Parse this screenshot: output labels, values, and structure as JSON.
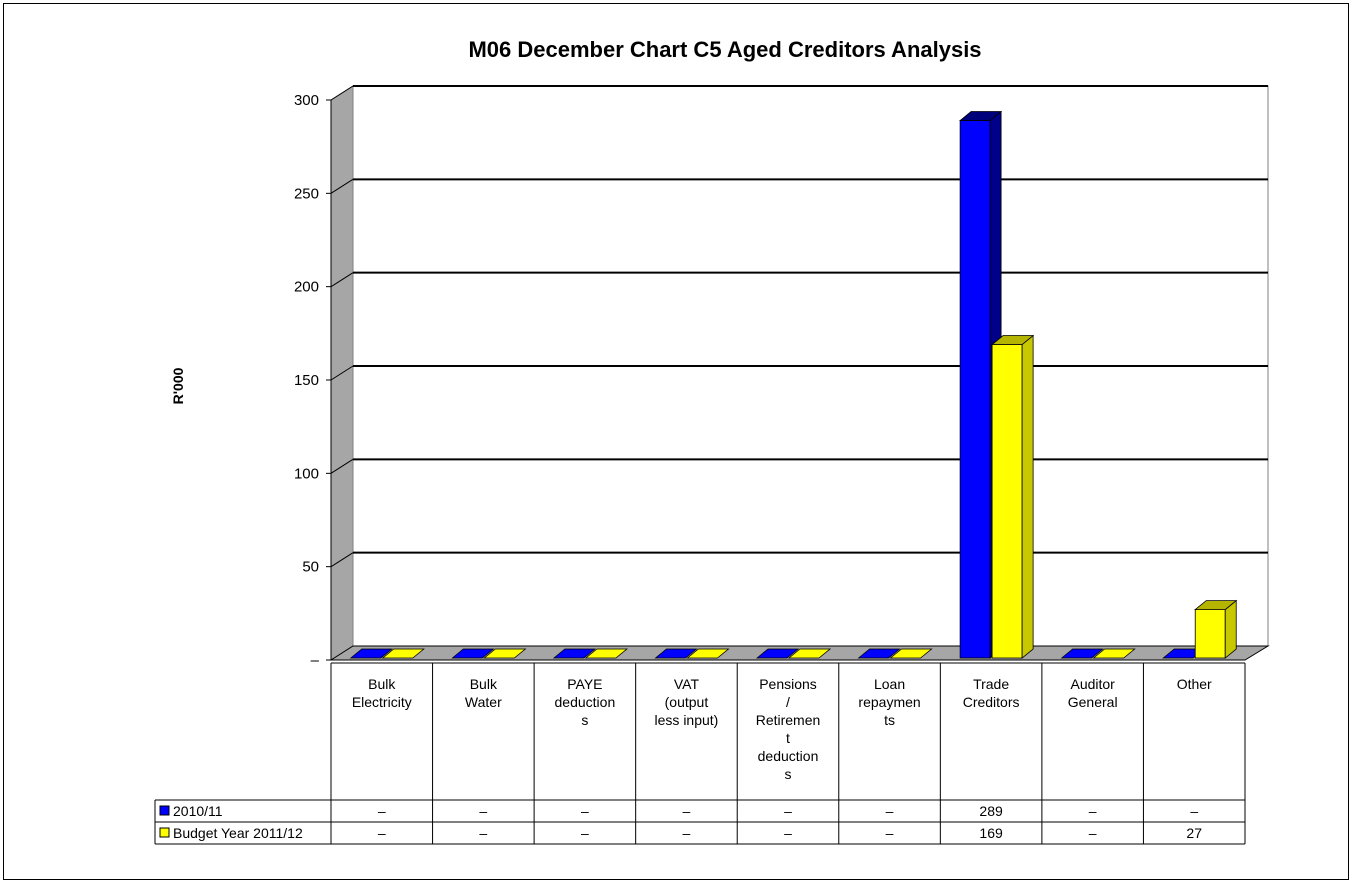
{
  "chart_data": {
    "type": "bar",
    "title": "M06 December  Chart C5 Aged Creditors Analysis",
    "ylabel": "R'000",
    "ylim": [
      0,
      300
    ],
    "yticks": [
      "–",
      "50",
      "100",
      "150",
      "200",
      "250",
      "300"
    ],
    "grid": true,
    "legend_placement": "data-table",
    "categories": [
      [
        "Bulk",
        "Electricity"
      ],
      [
        "Bulk",
        "Water"
      ],
      [
        "PAYE",
        "deduction",
        "s"
      ],
      [
        "VAT",
        "(output",
        "less input)"
      ],
      [
        "Pensions",
        "/",
        "Retiremen",
        "t",
        "deduction",
        "s"
      ],
      [
        "Loan",
        "repaymen",
        "ts"
      ],
      [
        "Trade",
        "Creditors"
      ],
      [
        "Auditor",
        "General"
      ],
      [
        "Other"
      ]
    ],
    "series": [
      {
        "name": "2010/11",
        "color": "#0000ff",
        "values": [
          0,
          0,
          0,
          0,
          0,
          0,
          289,
          0,
          0
        ],
        "labels": [
          "–",
          "–",
          "–",
          "–",
          "–",
          "–",
          "289",
          "–",
          "–"
        ]
      },
      {
        "name": "Budget Year 2011/12",
        "color": "#ffff00",
        "values": [
          0,
          0,
          0,
          0,
          0,
          0,
          169,
          0,
          27
        ],
        "labels": [
          "–",
          "–",
          "–",
          "–",
          "–",
          "–",
          "169",
          "–",
          "27"
        ]
      }
    ]
  }
}
